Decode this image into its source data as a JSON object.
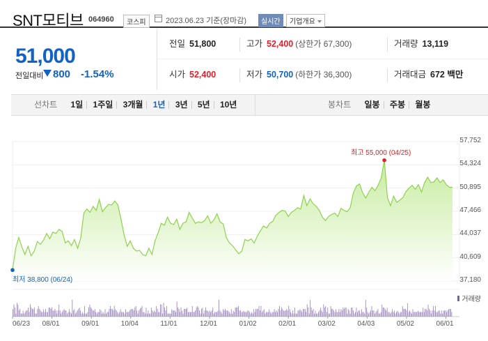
{
  "header": {
    "name": "SNT모티브",
    "code": "064960",
    "market": "코스피",
    "date": "2023.06.23 기준(장마감)",
    "realtime_label": "실시간",
    "company_info_label": "기업개요"
  },
  "price": {
    "current": "51,000",
    "change_label": "전일대비",
    "change": "800",
    "change_pct": "-1.54%",
    "direction": "down"
  },
  "stats": {
    "prev_close": {
      "label": "전일",
      "value": "51,800"
    },
    "high": {
      "label": "고가",
      "value": "52,400",
      "sub": "(상한가 67,300)"
    },
    "volume": {
      "label": "거래량",
      "value": "13,119"
    },
    "open": {
      "label": "시가",
      "value": "52,400"
    },
    "low": {
      "label": "저가",
      "value": "50,700",
      "sub": "(하한가 36,300)"
    },
    "amount": {
      "label": "거래대금",
      "value": "672 백만"
    }
  },
  "toolbar": {
    "line_label": "선차트",
    "line_periods": [
      "1일",
      "1주일",
      "3개월",
      "1년",
      "3년",
      "5년",
      "10년"
    ],
    "selected_period": "1년",
    "candle_label": "봉차트",
    "candle_periods": [
      "일봉",
      "주봉",
      "월봉"
    ]
  },
  "colors": {
    "blue": "#1261c4",
    "red": "#e0202c",
    "area_line": "#8fd14f",
    "area_fill": "#d9f2c0",
    "volume": "#7b5fa6"
  },
  "chart_data": {
    "type": "area",
    "y_ticks": [
      "57,752",
      "54,324",
      "50,895",
      "47,466",
      "44,037",
      "40,609",
      "37,180"
    ],
    "ylim": [
      37180,
      57752
    ],
    "x_ticks": [
      "06/23",
      "08/01",
      "09/01",
      "10/04",
      "11/01",
      "12/01",
      "01/02",
      "02/01",
      "03/02",
      "04/03",
      "05/02",
      "06/01"
    ],
    "high_annotation": "최고 55,000 (04/25)",
    "low_annotation": "최저 38,800 (06/24)",
    "volume_label": "거래량",
    "series": [
      {
        "values": [
          38800,
          42000,
          43600,
          42200,
          41100,
          42300,
          40900,
          41600,
          43000,
          42600,
          43200,
          44200,
          43400,
          44400,
          44200,
          44800,
          44500,
          42800,
          43100,
          42400,
          43300,
          42000,
          43500,
          47200,
          47800,
          47300,
          48200,
          47600,
          49200,
          47400,
          48000,
          48500,
          48400,
          49000,
          48400,
          46300,
          44000,
          42300,
          43100,
          42000,
          41600,
          41700,
          41100,
          40900,
          42000,
          41100,
          43100,
          44300,
          45700,
          45400,
          46600,
          45700,
          45500,
          46300,
          44800,
          45700,
          45900,
          47300,
          46500,
          45700,
          45900,
          45800,
          46100,
          46800,
          45700,
          46200,
          47100,
          45900,
          45600,
          43600,
          42800,
          42400,
          41800,
          41200,
          41600,
          43300,
          43100,
          43400,
          42800,
          43800,
          44600,
          45300,
          45000,
          45700,
          46000,
          46900,
          47300,
          47600,
          47500,
          46700,
          47300,
          47600,
          48000,
          47800,
          49800,
          48300,
          49300,
          48600,
          48200,
          47600,
          46600,
          46100,
          46700,
          47000,
          47200,
          46700,
          47900,
          47600,
          47400,
          48000,
          50200,
          51200,
          51500,
          50200,
          49400,
          50300,
          51000,
          50500,
          51300,
          52400,
          55000,
          49500,
          48300,
          49700,
          48800,
          49100,
          49500,
          50400,
          50900,
          51300,
          50700,
          51400,
          50300,
          51700,
          52500,
          51700,
          51800,
          52400,
          51700,
          52100,
          51400,
          51000,
          51000
        ]
      }
    ]
  }
}
